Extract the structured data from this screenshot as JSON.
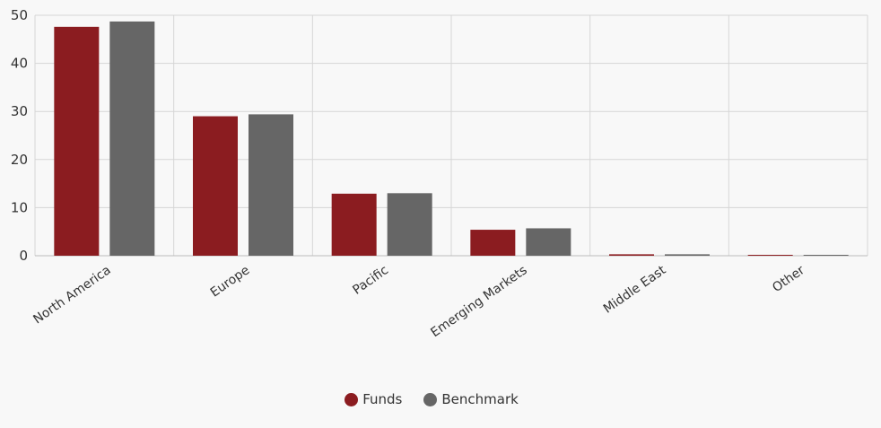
{
  "chart_data": {
    "type": "bar",
    "categories": [
      "North America",
      "Europe",
      "Pacific",
      "Emerging Markets",
      "Middle East",
      "Other"
    ],
    "series": [
      {
        "name": "Funds",
        "color": "#8b1c20",
        "values": [
          47.6,
          29.0,
          12.9,
          5.4,
          0.3,
          0.1
        ]
      },
      {
        "name": "Benchmark",
        "color": "#666666",
        "values": [
          48.7,
          29.4,
          13.0,
          5.7,
          0.3,
          0.1
        ]
      }
    ],
    "y_ticks": [
      "0",
      "10",
      "20",
      "30",
      "40",
      "50"
    ],
    "ylim": [
      0,
      50
    ],
    "grid": true,
    "legend_position": "bottom-center",
    "x_label_rotation": "diagonal"
  }
}
